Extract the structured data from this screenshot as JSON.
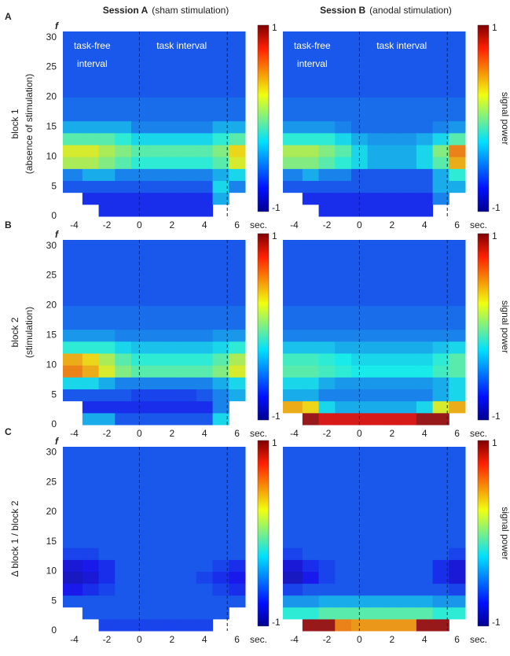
{
  "chart_data": [
    {
      "type": "heatmap",
      "row_label": "A",
      "title": [
        "Session A",
        "(sham stimulation)"
      ],
      "ylabel": [
        "block 1",
        "(absence of stimulation)"
      ],
      "y_axis_label": "f",
      "x_unit": "sec.",
      "annotations": [
        "task-free",
        "interval",
        "task interval"
      ],
      "xlim": [
        -4.7,
        6.5
      ],
      "ylim": [
        0,
        31
      ],
      "xticks": [
        -4,
        -2,
        0,
        2,
        4,
        6
      ],
      "yticks": [
        0,
        5,
        10,
        15,
        20,
        25,
        30
      ],
      "clim": [
        -1,
        1
      ],
      "cticks": [
        -1,
        1
      ],
      "vlines": [
        0,
        5.4
      ],
      "xbins": [
        -4.7,
        -3.5,
        -2.5,
        -1.5,
        -0.5,
        0.5,
        1.5,
        2.5,
        3.5,
        4.5,
        5.5,
        6.5
      ],
      "ybins": [
        0,
        2,
        4,
        6,
        8,
        10,
        12,
        14,
        16,
        20,
        31
      ],
      "z": [
        [
          null,
          null,
          -0.7,
          -0.7,
          -0.7,
          -0.7,
          -0.7,
          -0.7,
          -0.7,
          null,
          null
        ],
        [
          null,
          -0.7,
          -0.7,
          -0.7,
          -0.7,
          -0.7,
          -0.7,
          -0.7,
          -0.7,
          -0.4,
          null
        ],
        [
          -0.6,
          -0.6,
          -0.6,
          -0.6,
          -0.6,
          -0.6,
          -0.6,
          -0.6,
          -0.6,
          -0.3,
          -0.5
        ],
        [
          -0.5,
          -0.4,
          -0.4,
          -0.5,
          -0.5,
          -0.5,
          -0.5,
          -0.5,
          -0.5,
          -0.4,
          -0.3
        ],
        [
          0.1,
          0.1,
          0,
          -0.1,
          -0.2,
          -0.2,
          -0.2,
          -0.2,
          -0.2,
          -0.1,
          0.2
        ],
        [
          0.2,
          0.2,
          0.1,
          0,
          -0.1,
          -0.1,
          -0.1,
          -0.1,
          -0.1,
          0,
          0.3
        ],
        [
          -0.1,
          -0.1,
          -0.1,
          -0.2,
          -0.3,
          -0.3,
          -0.3,
          -0.3,
          -0.3,
          -0.2,
          -0.1
        ],
        [
          -0.4,
          -0.4,
          -0.4,
          -0.4,
          -0.5,
          -0.5,
          -0.5,
          -0.5,
          -0.5,
          -0.4,
          -0.4
        ],
        [
          -0.55,
          -0.55,
          -0.55,
          -0.55,
          -0.55,
          -0.55,
          -0.55,
          -0.55,
          -0.55,
          -0.55,
          -0.55
        ],
        [
          -0.6,
          -0.6,
          -0.6,
          -0.6,
          -0.6,
          -0.6,
          -0.6,
          -0.6,
          -0.6,
          -0.6,
          -0.6
        ]
      ]
    },
    {
      "type": "heatmap",
      "title": [
        "Session B",
        "(anodal stimulation)"
      ],
      "colorbar_label": "signal power",
      "x_unit": "sec.",
      "annotations": [
        "task-free",
        "interval",
        "task interval"
      ],
      "xlim": [
        -4.7,
        6.5
      ],
      "ylim": [
        0,
        31
      ],
      "xticks": [
        -4,
        -2,
        0,
        2,
        4,
        6
      ],
      "clim": [
        -1,
        1
      ],
      "cticks": [
        -1,
        1
      ],
      "vlines": [
        0,
        5.4
      ],
      "xbins": [
        -4.7,
        -3.5,
        -2.5,
        -1.5,
        -0.5,
        0.5,
        1.5,
        2.5,
        3.5,
        4.5,
        5.5,
        6.5
      ],
      "ybins": [
        0,
        2,
        4,
        6,
        8,
        10,
        12,
        14,
        16,
        20,
        31
      ],
      "z": [
        [
          null,
          null,
          -0.7,
          -0.7,
          -0.7,
          -0.7,
          -0.7,
          -0.7,
          -0.7,
          null,
          null
        ],
        [
          null,
          -0.7,
          -0.7,
          -0.7,
          -0.7,
          -0.7,
          -0.7,
          -0.7,
          -0.7,
          -0.5,
          null
        ],
        [
          -0.6,
          -0.6,
          -0.6,
          -0.6,
          -0.6,
          -0.6,
          -0.6,
          -0.6,
          -0.6,
          -0.4,
          -0.4
        ],
        [
          -0.5,
          -0.4,
          -0.5,
          -0.5,
          -0.6,
          -0.6,
          -0.6,
          -0.6,
          -0.6,
          -0.4,
          -0.2
        ],
        [
          0,
          0,
          -0.1,
          -0.2,
          -0.3,
          -0.4,
          -0.4,
          -0.4,
          -0.3,
          -0.1,
          0.4
        ],
        [
          0.1,
          0.1,
          0,
          -0.1,
          -0.3,
          -0.4,
          -0.4,
          -0.4,
          -0.3,
          0,
          0.5
        ],
        [
          -0.2,
          -0.2,
          -0.2,
          -0.3,
          -0.4,
          -0.45,
          -0.45,
          -0.45,
          -0.4,
          -0.3,
          -0.1
        ],
        [
          -0.45,
          -0.45,
          -0.45,
          -0.5,
          -0.55,
          -0.55,
          -0.55,
          -0.55,
          -0.55,
          -0.5,
          -0.45
        ],
        [
          -0.55,
          -0.55,
          -0.55,
          -0.55,
          -0.55,
          -0.55,
          -0.55,
          -0.55,
          -0.55,
          -0.55,
          -0.55
        ],
        [
          -0.6,
          -0.6,
          -0.6,
          -0.6,
          -0.6,
          -0.6,
          -0.6,
          -0.6,
          -0.6,
          -0.6,
          -0.6
        ]
      ]
    },
    {
      "type": "heatmap",
      "row_label": "B",
      "ylabel": [
        "block 2",
        "(stimulation)"
      ],
      "y_axis_label": "f",
      "x_unit": "sec.",
      "xlim": [
        -4.7,
        6.5
      ],
      "ylim": [
        0,
        31
      ],
      "xticks": [
        -4,
        -2,
        0,
        2,
        4,
        6
      ],
      "yticks": [
        0,
        5,
        10,
        15,
        20,
        25,
        30
      ],
      "clim": [
        -1,
        1
      ],
      "cticks": [
        -1,
        1
      ],
      "vlines": [
        0,
        5.4
      ],
      "xbins": [
        -4.7,
        -3.5,
        -2.5,
        -1.5,
        -0.5,
        0.5,
        1.5,
        2.5,
        3.5,
        4.5,
        5.5,
        6.5
      ],
      "ybins": [
        0,
        2,
        4,
        6,
        8,
        10,
        12,
        14,
        16,
        20,
        31
      ],
      "z": [
        [
          null,
          -0.4,
          -0.4,
          -0.6,
          -0.6,
          -0.6,
          -0.6,
          -0.6,
          -0.6,
          -0.3,
          null
        ],
        [
          null,
          -0.7,
          -0.7,
          -0.7,
          -0.7,
          -0.7,
          -0.7,
          -0.7,
          -0.7,
          -0.5,
          null
        ],
        [
          -0.6,
          -0.6,
          -0.6,
          -0.6,
          -0.65,
          -0.65,
          -0.65,
          -0.65,
          -0.6,
          -0.5,
          -0.4
        ],
        [
          -0.3,
          -0.3,
          -0.4,
          -0.5,
          -0.5,
          -0.5,
          -0.5,
          -0.5,
          -0.5,
          -0.4,
          -0.3
        ],
        [
          0.5,
          0.4,
          0.2,
          0,
          -0.1,
          -0.1,
          -0.1,
          -0.1,
          -0.1,
          0,
          0.2
        ],
        [
          0.4,
          0.3,
          0.1,
          -0.1,
          -0.2,
          -0.2,
          -0.2,
          -0.2,
          -0.2,
          -0.1,
          0.1
        ],
        [
          -0.2,
          -0.2,
          -0.2,
          -0.3,
          -0.35,
          -0.35,
          -0.35,
          -0.35,
          -0.35,
          -0.3,
          -0.2
        ],
        [
          -0.45,
          -0.45,
          -0.45,
          -0.5,
          -0.5,
          -0.5,
          -0.5,
          -0.5,
          -0.5,
          -0.45,
          -0.45
        ],
        [
          -0.55,
          -0.55,
          -0.55,
          -0.55,
          -0.55,
          -0.55,
          -0.55,
          -0.55,
          -0.55,
          -0.55,
          -0.55
        ],
        [
          -0.6,
          -0.6,
          -0.6,
          -0.6,
          -0.6,
          -0.6,
          -0.6,
          -0.6,
          -0.6,
          -0.6,
          -0.6
        ]
      ]
    },
    {
      "type": "heatmap",
      "colorbar_label": "signal power",
      "x_unit": "sec.",
      "xlim": [
        -4.7,
        6.5
      ],
      "ylim": [
        0,
        31
      ],
      "xticks": [
        -4,
        -2,
        0,
        2,
        4,
        6
      ],
      "clim": [
        -1,
        1
      ],
      "cticks": [
        -1,
        1
      ],
      "vlines": [
        0,
        5.4
      ],
      "xbins": [
        -4.7,
        -3.5,
        -2.5,
        -1.5,
        -0.5,
        0.5,
        1.5,
        2.5,
        3.5,
        4.5,
        5.5,
        6.5
      ],
      "ybins": [
        0,
        2,
        4,
        6,
        8,
        10,
        12,
        14,
        16,
        20,
        31
      ],
      "z": [
        [
          null,
          0.95,
          0.8,
          0.8,
          0.8,
          0.8,
          0.8,
          0.8,
          0.95,
          0.95,
          null
        ],
        [
          0.4,
          0.3,
          -0.3,
          -0.4,
          -0.4,
          -0.4,
          -0.4,
          -0.4,
          -0.3,
          0.2,
          0.4
        ],
        [
          -0.4,
          -0.4,
          -0.5,
          -0.5,
          -0.5,
          -0.5,
          -0.5,
          -0.5,
          -0.5,
          -0.4,
          -0.3
        ],
        [
          -0.3,
          -0.3,
          -0.4,
          -0.45,
          -0.45,
          -0.45,
          -0.45,
          -0.45,
          -0.45,
          -0.4,
          -0.3
        ],
        [
          -0.1,
          -0.1,
          -0.15,
          -0.2,
          -0.25,
          -0.25,
          -0.25,
          -0.25,
          -0.25,
          -0.15,
          -0.1
        ],
        [
          -0.15,
          -0.15,
          -0.2,
          -0.25,
          -0.3,
          -0.3,
          -0.3,
          -0.3,
          -0.3,
          -0.2,
          -0.1
        ],
        [
          -0.35,
          -0.35,
          -0.35,
          -0.4,
          -0.4,
          -0.4,
          -0.4,
          -0.4,
          -0.4,
          -0.35,
          -0.3
        ],
        [
          -0.5,
          -0.5,
          -0.5,
          -0.5,
          -0.5,
          -0.5,
          -0.5,
          -0.5,
          -0.5,
          -0.5,
          -0.5
        ],
        [
          -0.55,
          -0.55,
          -0.55,
          -0.55,
          -0.55,
          -0.55,
          -0.55,
          -0.55,
          -0.55,
          -0.55,
          -0.55
        ],
        [
          -0.6,
          -0.6,
          -0.6,
          -0.6,
          -0.6,
          -0.6,
          -0.6,
          -0.6,
          -0.6,
          -0.6,
          -0.6
        ]
      ]
    },
    {
      "type": "heatmap",
      "row_label": "C",
      "ylabel": [
        "Δ block 1 / block 2"
      ],
      "y_axis_label": "f",
      "x_unit": "sec.",
      "xlim": [
        -4.7,
        6.5
      ],
      "ylim": [
        0,
        31
      ],
      "xticks": [
        -4,
        -2,
        0,
        2,
        4,
        6
      ],
      "yticks": [
        0,
        5,
        10,
        15,
        20,
        25,
        30
      ],
      "clim": [
        -1,
        1
      ],
      "cticks": [
        -1,
        1
      ],
      "vlines": [
        0,
        5.4
      ],
      "xbins": [
        -4.7,
        -3.5,
        -2.5,
        -1.5,
        -0.5,
        0.5,
        1.5,
        2.5,
        3.5,
        4.5,
        5.5,
        6.5
      ],
      "ybins": [
        0,
        2,
        4,
        6,
        8,
        10,
        12,
        14,
        16,
        20,
        31
      ],
      "z": [
        [
          null,
          null,
          -0.65,
          -0.65,
          -0.65,
          -0.65,
          -0.65,
          -0.65,
          -0.65,
          null,
          null
        ],
        [
          null,
          -0.6,
          -0.6,
          -0.6,
          -0.6,
          -0.6,
          -0.6,
          -0.6,
          -0.6,
          -0.6,
          null
        ],
        [
          -0.6,
          -0.6,
          -0.6,
          -0.6,
          -0.6,
          -0.6,
          -0.6,
          -0.6,
          -0.6,
          -0.6,
          -0.6
        ],
        [
          -0.75,
          -0.7,
          -0.65,
          -0.6,
          -0.6,
          -0.6,
          -0.6,
          -0.6,
          -0.6,
          -0.65,
          -0.7
        ],
        [
          -0.85,
          -0.8,
          -0.7,
          -0.6,
          -0.6,
          -0.6,
          -0.6,
          -0.6,
          -0.65,
          -0.7,
          -0.75
        ],
        [
          -0.8,
          -0.75,
          -0.7,
          -0.6,
          -0.6,
          -0.6,
          -0.6,
          -0.6,
          -0.6,
          -0.65,
          -0.7
        ],
        [
          -0.65,
          -0.65,
          -0.6,
          -0.6,
          -0.6,
          -0.6,
          -0.6,
          -0.6,
          -0.6,
          -0.6,
          -0.6
        ],
        [
          -0.6,
          -0.6,
          -0.6,
          -0.6,
          -0.6,
          -0.6,
          -0.6,
          -0.6,
          -0.6,
          -0.6,
          -0.6
        ],
        [
          -0.6,
          -0.6,
          -0.6,
          -0.6,
          -0.6,
          -0.6,
          -0.6,
          -0.6,
          -0.6,
          -0.6,
          -0.6
        ],
        [
          -0.6,
          -0.6,
          -0.6,
          -0.6,
          -0.6,
          -0.6,
          -0.6,
          -0.6,
          -0.6,
          -0.6,
          -0.6
        ]
      ]
    },
    {
      "type": "heatmap",
      "colorbar_label": "signal power",
      "x_unit": "sec.",
      "xlim": [
        -4.7,
        6.5
      ],
      "ylim": [
        0,
        31
      ],
      "xticks": [
        -4,
        -2,
        0,
        2,
        4,
        6
      ],
      "clim": [
        -1,
        1
      ],
      "cticks": [
        -1,
        1
      ],
      "vlines": [
        0,
        5.4
      ],
      "xbins": [
        -4.7,
        -3.5,
        -2.5,
        -1.5,
        -0.5,
        0.5,
        1.5,
        2.5,
        3.5,
        4.5,
        5.5,
        6.5
      ],
      "ybins": [
        0,
        2,
        4,
        6,
        8,
        10,
        12,
        14,
        16,
        20,
        31
      ],
      "z": [
        [
          null,
          0.95,
          0.95,
          0.5,
          0.45,
          0.45,
          0.45,
          0.45,
          0.95,
          0.95,
          null
        ],
        [
          -0.2,
          -0.2,
          -0.1,
          -0.1,
          -0.1,
          -0.1,
          -0.1,
          -0.1,
          -0.1,
          -0.2,
          -0.2
        ],
        [
          -0.45,
          -0.45,
          -0.4,
          -0.4,
          -0.4,
          -0.4,
          -0.4,
          -0.4,
          -0.4,
          -0.45,
          -0.45
        ],
        [
          -0.65,
          -0.6,
          -0.6,
          -0.6,
          -0.6,
          -0.6,
          -0.6,
          -0.6,
          -0.6,
          -0.6,
          -0.65
        ],
        [
          -0.85,
          -0.75,
          -0.65,
          -0.6,
          -0.6,
          -0.6,
          -0.6,
          -0.6,
          -0.6,
          -0.7,
          -0.8
        ],
        [
          -0.8,
          -0.7,
          -0.65,
          -0.6,
          -0.6,
          -0.6,
          -0.6,
          -0.6,
          -0.6,
          -0.7,
          -0.8
        ],
        [
          -0.65,
          -0.6,
          -0.6,
          -0.6,
          -0.6,
          -0.6,
          -0.6,
          -0.6,
          -0.6,
          -0.6,
          -0.65
        ],
        [
          -0.6,
          -0.6,
          -0.6,
          -0.6,
          -0.6,
          -0.6,
          -0.6,
          -0.6,
          -0.6,
          -0.6,
          -0.6
        ],
        [
          -0.6,
          -0.6,
          -0.6,
          -0.6,
          -0.6,
          -0.6,
          -0.6,
          -0.6,
          -0.6,
          -0.6,
          -0.6
        ],
        [
          -0.6,
          -0.6,
          -0.6,
          -0.6,
          -0.6,
          -0.6,
          -0.6,
          -0.6,
          -0.6,
          -0.6,
          -0.6
        ]
      ]
    }
  ]
}
